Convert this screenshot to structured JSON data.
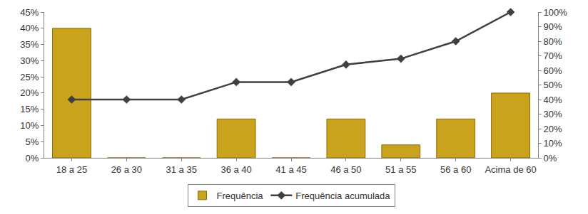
{
  "chart_data": {
    "type": "bar",
    "categories": [
      "18 a 25",
      "26 a 30",
      "31 a 35",
      "36 a 40",
      "41 a 45",
      "46 a 50",
      "51 a 55",
      "56 a 60",
      "Acima de 60"
    ],
    "series": [
      {
        "name": "Frequência",
        "type": "bar",
        "color": "#c9a31c",
        "values": [
          40,
          0,
          0,
          12,
          0,
          12,
          4,
          12,
          20
        ]
      },
      {
        "name": "Frequência acumulada",
        "type": "line",
        "axis": "y2",
        "color": "#404040",
        "marker": "diamond",
        "values": [
          40,
          40,
          40,
          52,
          52,
          64,
          68,
          80,
          100
        ]
      }
    ],
    "ylim": [
      0,
      45
    ],
    "yticks": [
      {
        "value": 0,
        "label": "0%"
      },
      {
        "value": 5,
        "label": "5%"
      },
      {
        "value": 10,
        "label": "10%"
      },
      {
        "value": 15,
        "label": "15%"
      },
      {
        "value": 20,
        "label": "20%"
      },
      {
        "value": 25,
        "label": "25%"
      },
      {
        "value": 30,
        "label": "30%"
      },
      {
        "value": 35,
        "label": "35%"
      },
      {
        "value": 40,
        "label": "40%"
      },
      {
        "value": 45,
        "label": "45%"
      }
    ],
    "y2lim": [
      0,
      100
    ],
    "y2ticks": [
      {
        "value": 0,
        "label": "0%"
      },
      {
        "value": 10,
        "label": "10%"
      },
      {
        "value": 20,
        "label": "20%"
      },
      {
        "value": 30,
        "label": "30%"
      },
      {
        "value": 40,
        "label": "40%"
      },
      {
        "value": 50,
        "label": "50%"
      },
      {
        "value": 60,
        "label": "60%"
      },
      {
        "value": 70,
        "label": "70%"
      },
      {
        "value": 80,
        "label": "80%"
      },
      {
        "value": 90,
        "label": "90%"
      },
      {
        "value": 100,
        "label": "100%"
      }
    ],
    "grid": false,
    "legend": "bottom"
  }
}
